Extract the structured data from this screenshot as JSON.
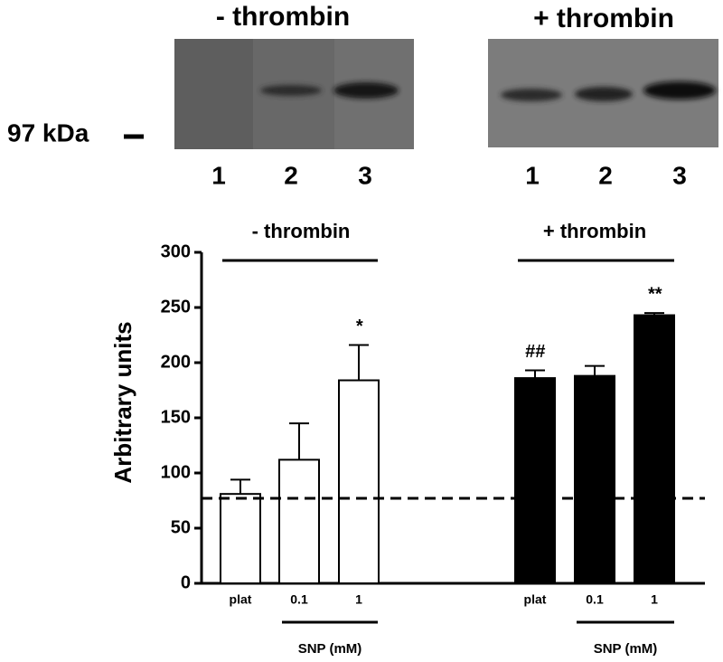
{
  "blot": {
    "marker": "97 kDa",
    "panels": [
      {
        "title": "- thrombin",
        "lanes": [
          "1",
          "2",
          "3"
        ]
      },
      {
        "title": "+ thrombin",
        "lanes": [
          "1",
          "2",
          "3"
        ]
      }
    ]
  },
  "chart_data": {
    "type": "bar",
    "ylabel": "Arbitrary units",
    "groups": [
      "- thrombin",
      "+ thrombin"
    ],
    "sublabel": "SNP (mM)",
    "categories": [
      "plat",
      "0.1",
      "1",
      "plat",
      "0.1",
      "1"
    ],
    "values": [
      81,
      112,
      184,
      186,
      188,
      243
    ],
    "errors": [
      13,
      33,
      32,
      7,
      9,
      2
    ],
    "colors": [
      "#ffffff",
      "#ffffff",
      "#ffffff",
      "#000000",
      "#000000",
      "#000000"
    ],
    "annotations": [
      null,
      null,
      "*",
      "##",
      null,
      "**"
    ],
    "reference_line": 77,
    "ylim": [
      0,
      300
    ],
    "yticks": [
      0,
      50,
      100,
      150,
      200,
      250,
      300
    ]
  }
}
